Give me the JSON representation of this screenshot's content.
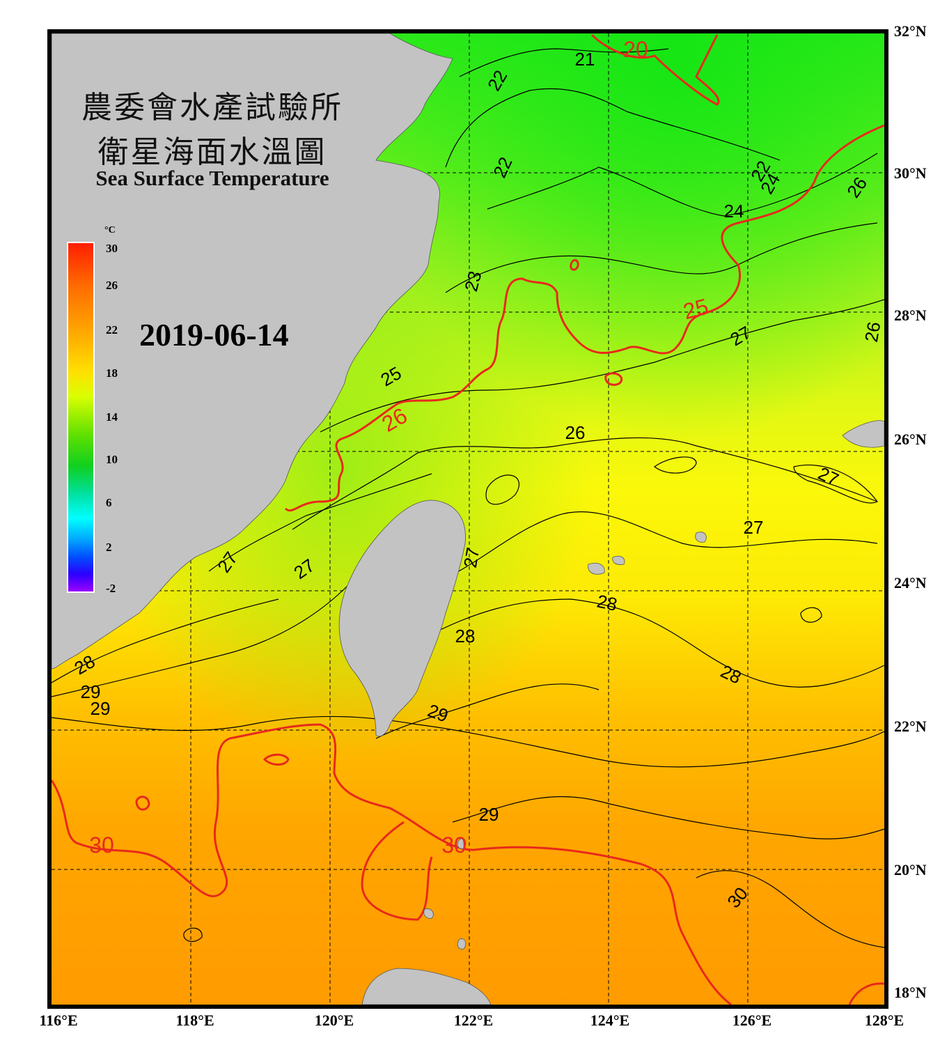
{
  "title_zh_1": "農委會水產試驗所",
  "title_zh_2": "衛星海面水溫圖",
  "title_en": "Sea Surface Temperature",
  "date": "2019-06-14",
  "colorbar": {
    "unit": "°C",
    "ticks": [
      "30",
      "26",
      "22",
      "18",
      "14",
      "10",
      "6",
      "2",
      "-2"
    ],
    "tick_values": [
      30,
      26,
      22,
      18,
      14,
      10,
      6,
      2,
      -2
    ]
  },
  "latitudes": [
    "32°N",
    "30°N",
    "28°N",
    "26°N",
    "24°N",
    "22°N",
    "20°N",
    "18°N"
  ],
  "longitudes": [
    "116°E",
    "118°E",
    "120°E",
    "122°E",
    "124°E",
    "126°E",
    "128°E"
  ],
  "isotherm_labels": [
    "20",
    "21",
    "22",
    "22",
    "22",
    "23",
    "24",
    "24",
    "25",
    "25",
    "26",
    "26",
    "26",
    "26",
    "27",
    "27",
    "27",
    "27",
    "27",
    "27",
    "28",
    "28",
    "28",
    "28",
    "29",
    "29",
    "29",
    "29",
    "30",
    "30"
  ],
  "colors": {
    "land": "#c3c3c3",
    "frame": "#000000",
    "highlight_isotherm": "#e8291c",
    "isotherm": "#000000",
    "grid": "#000000"
  }
}
